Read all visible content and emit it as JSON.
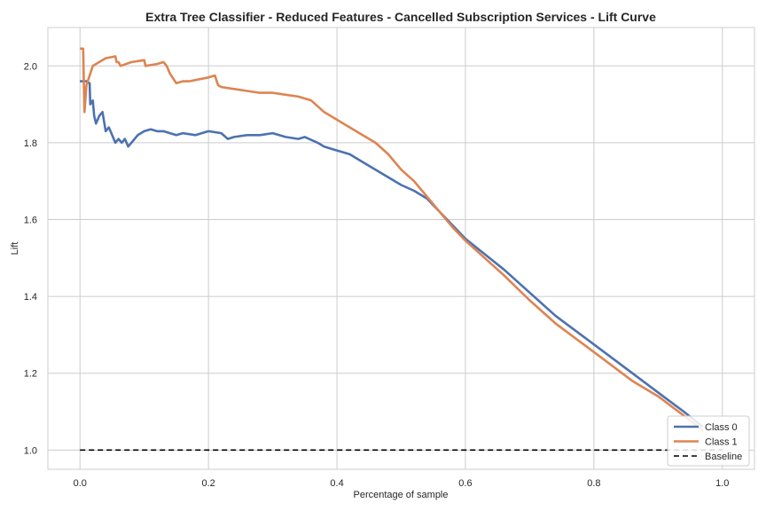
{
  "chart_data": {
    "type": "line",
    "title": "Extra Tree Classifier - Reduced Features - Cancelled Subscription Services - Lift Curve",
    "xlabel": "Percentage of sample",
    "ylabel": "Lift",
    "xlim": [
      -0.05,
      1.05
    ],
    "ylim": [
      0.95,
      2.1
    ],
    "xticks": [
      0.0,
      0.2,
      0.4,
      0.6,
      0.8,
      1.0
    ],
    "xtick_labels": [
      "0.0",
      "0.2",
      "0.4",
      "0.6",
      "0.8",
      "1.0"
    ],
    "yticks": [
      1.0,
      1.2,
      1.4,
      1.6,
      1.8,
      2.0
    ],
    "ytick_labels": [
      "1.0",
      "1.2",
      "1.4",
      "1.6",
      "1.8",
      "2.0"
    ],
    "grid": true,
    "legend_position": "bottom-right",
    "series": [
      {
        "name": "Class 0",
        "color": "#4c72b0",
        "style": "solid",
        "x": [
          0.0,
          0.01,
          0.015,
          0.016,
          0.02,
          0.022,
          0.025,
          0.03,
          0.035,
          0.04,
          0.045,
          0.05,
          0.055,
          0.06,
          0.065,
          0.07,
          0.075,
          0.08,
          0.09,
          0.1,
          0.11,
          0.12,
          0.13,
          0.14,
          0.15,
          0.16,
          0.18,
          0.2,
          0.22,
          0.23,
          0.24,
          0.26,
          0.28,
          0.3,
          0.32,
          0.34,
          0.35,
          0.37,
          0.38,
          0.4,
          0.42,
          0.44,
          0.46,
          0.48,
          0.5,
          0.52,
          0.54,
          0.56,
          0.58,
          0.6,
          0.63,
          0.66,
          0.7,
          0.74,
          0.78,
          0.82,
          0.86,
          0.9,
          0.94,
          0.97
        ],
        "y": [
          1.96,
          1.96,
          1.955,
          1.9,
          1.91,
          1.87,
          1.85,
          1.87,
          1.88,
          1.83,
          1.84,
          1.82,
          1.8,
          1.81,
          1.8,
          1.81,
          1.79,
          1.8,
          1.82,
          1.83,
          1.835,
          1.83,
          1.83,
          1.825,
          1.82,
          1.825,
          1.82,
          1.83,
          1.825,
          1.81,
          1.815,
          1.82,
          1.82,
          1.825,
          1.815,
          1.81,
          1.815,
          1.8,
          1.79,
          1.78,
          1.77,
          1.75,
          1.73,
          1.71,
          1.69,
          1.675,
          1.655,
          1.62,
          1.585,
          1.55,
          1.51,
          1.47,
          1.41,
          1.35,
          1.3,
          1.25,
          1.2,
          1.15,
          1.1,
          1.06
        ]
      },
      {
        "name": "Class 1",
        "color": "#dd8452",
        "style": "solid",
        "x": [
          0.0,
          0.005,
          0.006,
          0.007,
          0.01,
          0.02,
          0.04,
          0.055,
          0.057,
          0.06,
          0.063,
          0.08,
          0.1,
          0.102,
          0.12,
          0.13,
          0.135,
          0.14,
          0.15,
          0.16,
          0.17,
          0.2,
          0.21,
          0.215,
          0.22,
          0.24,
          0.26,
          0.28,
          0.3,
          0.32,
          0.34,
          0.36,
          0.38,
          0.4,
          0.42,
          0.44,
          0.46,
          0.48,
          0.5,
          0.52,
          0.54,
          0.56,
          0.58,
          0.6,
          0.63,
          0.66,
          0.7,
          0.74,
          0.78,
          0.82,
          0.86,
          0.9,
          0.94,
          0.97
        ],
        "y": [
          2.045,
          2.045,
          1.95,
          1.88,
          1.95,
          2.0,
          2.02,
          2.025,
          2.01,
          2.01,
          2.0,
          2.01,
          2.015,
          2.0,
          2.005,
          2.01,
          2.0,
          1.98,
          1.955,
          1.96,
          1.96,
          1.97,
          1.975,
          1.95,
          1.945,
          1.94,
          1.935,
          1.93,
          1.93,
          1.925,
          1.92,
          1.91,
          1.88,
          1.86,
          1.84,
          1.82,
          1.8,
          1.77,
          1.73,
          1.7,
          1.66,
          1.62,
          1.58,
          1.545,
          1.5,
          1.455,
          1.39,
          1.33,
          1.28,
          1.23,
          1.18,
          1.14,
          1.09,
          1.05
        ]
      },
      {
        "name": "Baseline",
        "color": "#000000",
        "style": "dashed",
        "x": [
          0.0,
          1.0
        ],
        "y": [
          1.0,
          1.0
        ]
      }
    ]
  }
}
